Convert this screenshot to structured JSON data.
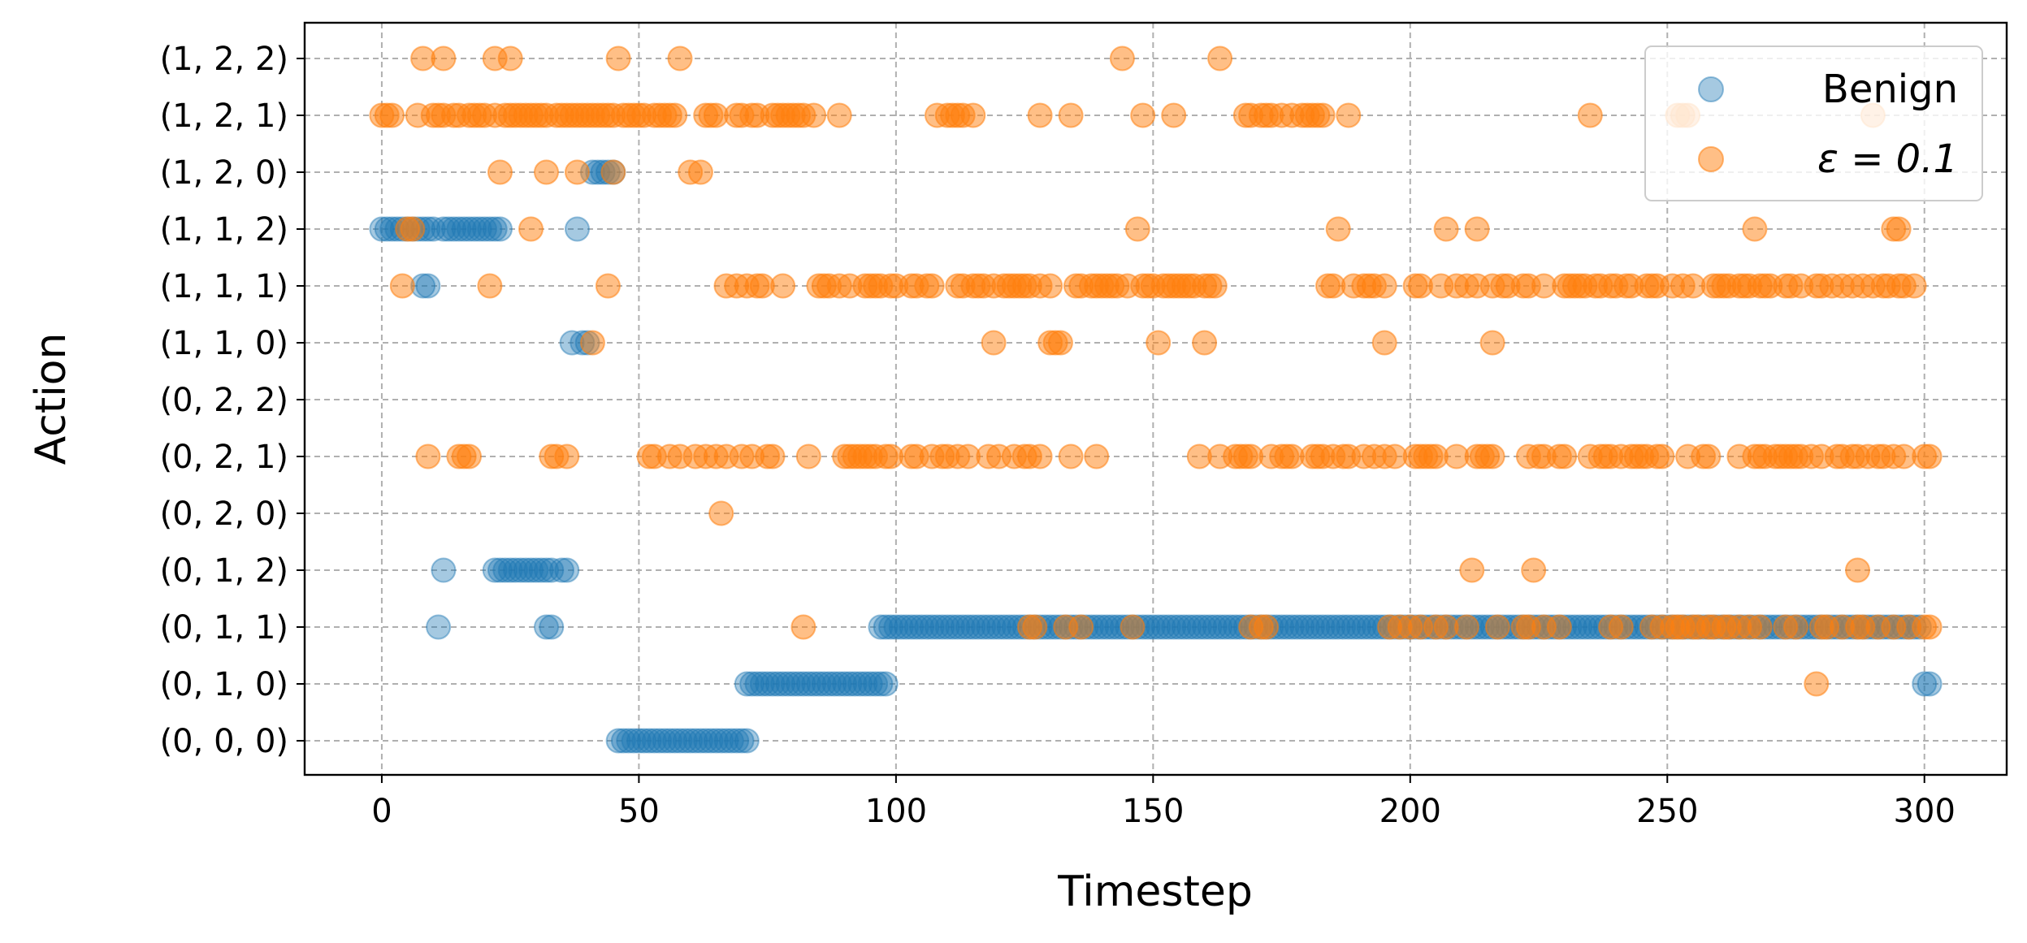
{
  "chart_data": {
    "type": "scatter",
    "xlabel": "Timestep",
    "ylabel": "Action",
    "xlim": [
      -15,
      316
    ],
    "xticks": [
      0,
      50,
      100,
      150,
      200,
      250,
      300
    ],
    "categories": [
      "(0, 0, 0)",
      "(0, 1, 0)",
      "(0, 1, 1)",
      "(0, 1, 2)",
      "(0, 2, 0)",
      "(0, 2, 1)",
      "(0, 2, 2)",
      "(1, 1, 0)",
      "(1, 1, 1)",
      "(1, 1, 2)",
      "(1, 2, 0)",
      "(1, 2, 1)",
      "(1, 2, 2)"
    ],
    "grid": true,
    "legend_position": "top-right",
    "series": [
      {
        "name": "Benign",
        "color": "#1f77b4",
        "points": [
          {
            "action": "(1, 1, 2)",
            "x": [
              0,
              1,
              2,
              3,
              4,
              5,
              6,
              7,
              8,
              9,
              10,
              12,
              13,
              14,
              15,
              16,
              17,
              18,
              19,
              20,
              21,
              22,
              23,
              38
            ]
          },
          {
            "action": "(1, 1, 1)",
            "x": [
              8,
              9
            ]
          },
          {
            "action": "(1, 2, 0)",
            "x": [
              41,
              42,
              43,
              44,
              45
            ]
          },
          {
            "action": "(1, 1, 0)",
            "x": [
              37,
              39,
              40
            ]
          },
          {
            "action": "(0, 1, 2)",
            "x": [
              12,
              22,
              23,
              24,
              25,
              26,
              27,
              28,
              29,
              30,
              31,
              32,
              33,
              35,
              36
            ]
          },
          {
            "action": "(0, 1, 1)",
            "x": [
              11,
              32,
              33,
              97,
              98,
              99,
              100,
              101,
              102,
              103,
              104,
              105,
              106,
              107,
              108,
              109,
              110,
              111,
              112,
              113,
              114,
              115,
              116,
              117,
              118,
              119,
              120,
              121,
              122,
              123,
              124,
              125,
              126,
              127,
              128,
              129,
              130,
              131,
              132,
              133,
              134,
              135,
              136,
              137,
              138,
              139,
              140,
              141,
              142,
              143,
              144,
              145,
              146,
              147,
              148,
              149,
              150,
              151,
              152,
              153,
              154,
              155,
              156,
              157,
              158,
              159,
              160,
              161,
              162,
              163,
              164,
              165,
              166,
              167,
              168,
              169,
              170,
              171,
              172,
              173,
              174,
              175,
              176,
              177,
              178,
              179,
              180,
              181,
              182,
              183,
              184,
              185,
              186,
              187,
              188,
              189,
              190,
              191,
              192,
              193,
              194,
              195,
              196,
              197,
              198,
              199,
              200,
              201,
              202,
              203,
              204,
              205,
              206,
              207,
              208,
              209,
              210,
              211,
              212,
              213,
              214,
              215,
              216,
              217,
              218,
              219,
              220,
              221,
              222,
              223,
              224,
              225,
              226,
              227,
              228,
              229,
              230,
              231,
              232,
              233,
              234,
              235,
              236,
              237,
              238,
              239,
              240,
              241,
              242,
              243,
              244,
              245,
              246,
              247,
              248,
              249,
              250,
              251,
              252,
              253,
              254,
              255,
              256,
              257,
              258,
              259,
              260,
              261,
              262,
              263,
              264,
              265,
              266,
              267,
              268,
              269,
              270,
              271,
              272,
              273,
              274,
              275,
              276,
              277,
              278,
              279,
              280,
              281,
              282,
              283,
              284,
              285,
              286,
              287,
              288,
              289,
              290,
              291,
              292,
              293,
              294,
              295,
              296,
              297,
              298,
              299
            ]
          },
          {
            "action": "(0, 1, 0)",
            "x": [
              71,
              72,
              73,
              74,
              75,
              76,
              77,
              78,
              79,
              80,
              81,
              82,
              83,
              84,
              85,
              86,
              87,
              88,
              89,
              90,
              91,
              92,
              93,
              94,
              95,
              96,
              97,
              98,
              300,
              301
            ]
          },
          {
            "action": "(0, 0, 0)",
            "x": [
              46,
              47,
              48,
              49,
              50,
              51,
              52,
              53,
              54,
              55,
              56,
              57,
              58,
              59,
              60,
              61,
              62,
              63,
              64,
              65,
              66,
              67,
              68,
              69,
              70,
              71
            ]
          }
        ]
      },
      {
        "name": "ε = 0.1",
        "color": "#ff7f0e",
        "points": [
          {
            "action": "(1, 2, 2)",
            "x": [
              8,
              12,
              22,
              25,
              46,
              58,
              144,
              163
            ]
          },
          {
            "action": "(1, 2, 1)",
            "x": [
              0,
              1,
              2,
              7,
              10,
              11,
              12,
              14,
              15,
              17,
              18,
              19,
              20,
              22,
              24,
              25,
              26,
              27,
              28,
              29,
              30,
              31,
              32,
              34,
              35,
              36,
              37,
              38,
              39,
              40,
              41,
              42,
              43,
              44,
              45,
              47,
              48,
              49,
              50,
              51,
              53,
              54,
              55,
              56,
              57,
              63,
              64,
              65,
              69,
              70,
              72,
              73,
              76,
              77,
              78,
              79,
              80,
              81,
              82,
              84,
              89,
              108,
              110,
              111,
              112,
              113,
              115,
              128,
              134,
              148,
              154,
              168,
              169,
              171,
              172,
              173,
              175,
              177,
              179,
              180,
              181,
              182,
              183,
              188,
              235,
              252,
              253,
              254,
              290
            ]
          },
          {
            "action": "(1, 2, 0)",
            "x": [
              23,
              32,
              38,
              45,
              60,
              62
            ]
          },
          {
            "action": "(1, 1, 2)",
            "x": [
              5,
              6,
              29,
              147,
              186,
              207,
              213,
              267,
              294,
              295
            ]
          },
          {
            "action": "(1, 1, 1)",
            "x": [
              4,
              21,
              44,
              67,
              69,
              71,
              73,
              74,
              78,
              85,
              86,
              87,
              89,
              91,
              94,
              95,
              96,
              97,
              99,
              100,
              103,
              104,
              106,
              107,
              112,
              113,
              115,
              116,
              117,
              119,
              121,
              122,
              123,
              124,
              125,
              126,
              128,
              130,
              135,
              136,
              138,
              139,
              140,
              141,
              142,
              143,
              145,
              148,
              149,
              150,
              152,
              153,
              154,
              155,
              156,
              157,
              158,
              160,
              161,
              162,
              184,
              185,
              189,
              191,
              192,
              193,
              195,
              201,
              202,
              206,
              209,
              211,
              213,
              216,
              218,
              219,
              222,
              223,
              226,
              230,
              231,
              232,
              233,
              234,
              236,
              237,
              239,
              240,
              242,
              243,
              246,
              247,
              248,
              251,
              253,
              255,
              259,
              260,
              261,
              262,
              264,
              265,
              266,
              268,
              269,
              270,
              273,
              274,
              276,
              279,
              280,
              282,
              284,
              286,
              288,
              290,
              292,
              293,
              295,
              296,
              298
            ]
          },
          {
            "action": "(1, 1, 0)",
            "x": [
              41,
              119,
              130,
              131,
              132,
              151,
              160,
              195,
              216
            ]
          },
          {
            "action": "(0, 2, 1)",
            "x": [
              9,
              15,
              16,
              17,
              33,
              34,
              36,
              52,
              53,
              56,
              58,
              61,
              63,
              65,
              67,
              70,
              72,
              75,
              76,
              83,
              90,
              91,
              92,
              93,
              94,
              95,
              96,
              98,
              99,
              103,
              104,
              107,
              109,
              110,
              112,
              114,
              118,
              120,
              123,
              125,
              126,
              128,
              134,
              139,
              159,
              163,
              166,
              167,
              168,
              169,
              173,
              175,
              176,
              177,
              181,
              182,
              183,
              185,
              187,
              188,
              191,
              193,
              195,
              197,
              201,
              202,
              203,
              204,
              205,
              209,
              213,
              214,
              215,
              216,
              223,
              225,
              226,
              229,
              230,
              235,
              237,
              238,
              239,
              241,
              243,
              244,
              245,
              246,
              248,
              249,
              254,
              257,
              258,
              264,
              267,
              268,
              269,
              271,
              272,
              273,
              274,
              275,
              276,
              278,
              280,
              283,
              284,
              286,
              287,
              289,
              291,
              292,
              294,
              296,
              300,
              301
            ]
          },
          {
            "action": "(0, 2, 0)",
            "x": [
              66
            ]
          },
          {
            "action": "(0, 1, 2)",
            "x": [
              212,
              224,
              287
            ]
          },
          {
            "action": "(0, 1, 1)",
            "x": [
              82,
              126,
              127,
              133,
              136,
              146,
              169,
              171,
              172,
              196,
              198,
              200,
              202,
              205,
              207,
              211,
              217,
              222,
              223,
              226,
              229,
              239,
              241,
              247,
              249,
              251,
              252,
              253,
              255,
              256,
              258,
              259,
              261,
              262,
              264,
              266,
              268,
              273,
              275,
              280,
              281,
              284,
              287,
              288,
              291,
              294,
              297,
              300,
              301
            ]
          },
          {
            "action": "(0, 1, 0)",
            "x": [
              279
            ]
          }
        ]
      }
    ]
  }
}
